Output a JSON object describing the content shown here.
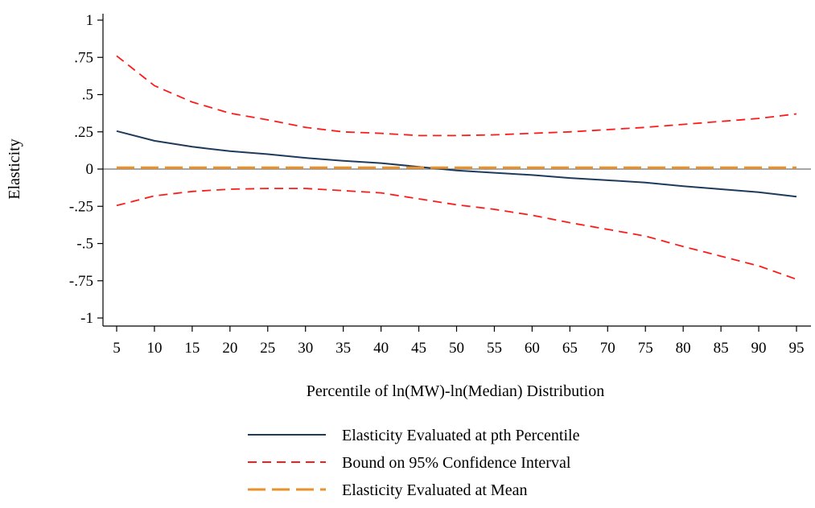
{
  "chart_data": {
    "type": "line",
    "title": "",
    "xlabel": "Percentile of ln(MW)-ln(Median) Distribution",
    "ylabel": "Elasticity",
    "x": [
      5,
      10,
      15,
      20,
      25,
      30,
      35,
      40,
      45,
      50,
      55,
      60,
      65,
      70,
      75,
      80,
      85,
      90,
      95
    ],
    "x_ticks": [
      "5",
      "10",
      "15",
      "20",
      "25",
      "30",
      "35",
      "40",
      "45",
      "50",
      "55",
      "60",
      "65",
      "70",
      "75",
      "80",
      "85",
      "90",
      "95"
    ],
    "y_ticks": [
      {
        "value": 1,
        "label": "1"
      },
      {
        "value": 0.75,
        "label": ".75"
      },
      {
        "value": 0.5,
        "label": ".5"
      },
      {
        "value": 0.25,
        "label": ".25"
      },
      {
        "value": 0,
        "label": "0"
      },
      {
        "value": -0.25,
        "label": "-.25"
      },
      {
        "value": -0.5,
        "label": "-.5"
      },
      {
        "value": -0.75,
        "label": "-.75"
      },
      {
        "value": -1,
        "label": "-1"
      }
    ],
    "xlim": [
      5,
      95
    ],
    "ylim": [
      -1,
      1
    ],
    "grid": false,
    "legend_position": "bottom",
    "series": [
      {
        "name": "Elasticity Evaluated at pth Percentile",
        "color": "#1f3b5c",
        "style": "solid",
        "values": [
          0.255,
          0.19,
          0.15,
          0.12,
          0.1,
          0.075,
          0.055,
          0.04,
          0.015,
          -0.01,
          -0.025,
          -0.04,
          -0.06,
          -0.075,
          -0.09,
          -0.115,
          -0.135,
          -0.155,
          -0.185
        ]
      },
      {
        "name": "Bound on 95% Confidence Interval",
        "color": "#ff1a1a",
        "style": "short-dash",
        "values": [
          0.76,
          0.56,
          0.45,
          0.375,
          0.33,
          0.28,
          0.25,
          0.24,
          0.225,
          0.225,
          0.23,
          0.24,
          0.25,
          0.265,
          0.28,
          0.3,
          0.32,
          0.34,
          0.37
        ]
      },
      {
        "name": "",
        "color": "#ff1a1a",
        "style": "short-dash",
        "values": [
          -0.245,
          -0.18,
          -0.15,
          -0.135,
          -0.13,
          -0.13,
          -0.145,
          -0.16,
          -0.2,
          -0.24,
          -0.27,
          -0.31,
          -0.36,
          -0.405,
          -0.45,
          -0.52,
          -0.585,
          -0.65,
          -0.74
        ]
      },
      {
        "name": "Elasticity Evaluated at Mean",
        "color": "#e8912d",
        "style": "long-dash",
        "values": [
          0.01,
          0.01,
          0.01,
          0.01,
          0.01,
          0.01,
          0.01,
          0.01,
          0.01,
          0.01,
          0.01,
          0.01,
          0.01,
          0.01,
          0.01,
          0.01,
          0.01,
          0.01,
          0.01
        ]
      }
    ]
  }
}
